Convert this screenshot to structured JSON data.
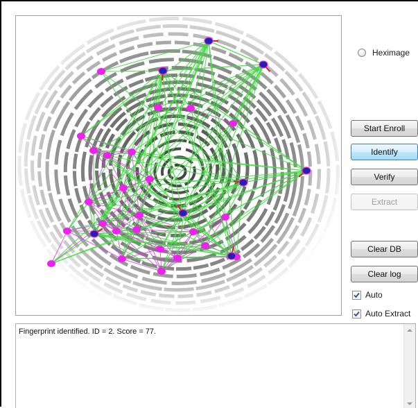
{
  "preview": {
    "ridges": 20,
    "colors": {
      "ridge": "#1e1e1e",
      "probe_edge": "#e040e0",
      "probe_node": "#ee22ee",
      "template_edge": "#44dd44",
      "template_node": "#2222aa",
      "direction": "#e02020"
    }
  },
  "options": {
    "heximage_label": "Heximage",
    "heximage_checked": false
  },
  "buttons": {
    "start_enroll": "Start Enroll",
    "identify": "Identify",
    "verify": "Verify",
    "extract": "Extract",
    "clear_db": "Clear DB",
    "clear_log": "Clear log"
  },
  "checkboxes": {
    "auto_label": "Auto",
    "auto_checked": true,
    "auto_extract_label": "Auto Extract",
    "auto_extract_checked": true
  },
  "log": {
    "lines": [
      "Fingerprint identified. ID = 2. Score = 77."
    ]
  }
}
